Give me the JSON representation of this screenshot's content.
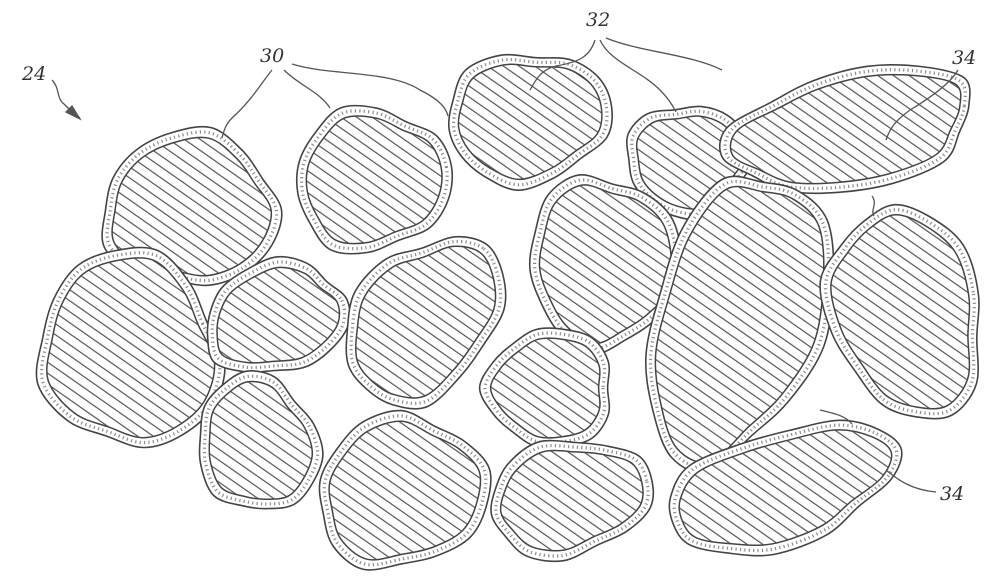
{
  "figure": {
    "reference_numerals": {
      "assembly": "24",
      "first_particles": "30",
      "second_particles": "32",
      "coating_top": "34",
      "coating_bottom": "34"
    },
    "colors": {
      "line": "#444444",
      "hatch": "#555555",
      "background": "#ffffff"
    }
  }
}
